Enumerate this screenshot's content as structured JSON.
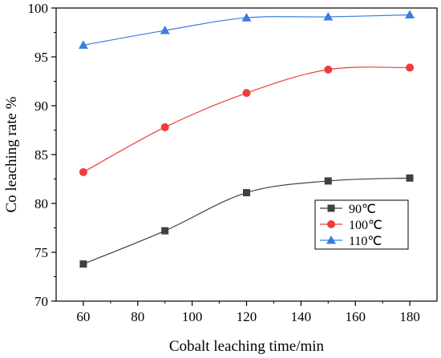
{
  "chart_data": {
    "type": "line",
    "xlabel": "Cobalt leaching time/min",
    "ylabel": "Co leaching rate %",
    "xlim": [
      50,
      190
    ],
    "ylim": [
      70,
      100
    ],
    "xticks": [
      60,
      80,
      100,
      120,
      140,
      160,
      180
    ],
    "yticks": [
      70,
      75,
      80,
      85,
      90,
      95,
      100
    ],
    "grid": false,
    "legend_position": "lower-right",
    "x": [
      60,
      90,
      120,
      150,
      180
    ],
    "series": [
      {
        "name": "90℃",
        "marker": "square",
        "color": "#404040",
        "values": [
          73.8,
          77.2,
          81.1,
          82.3,
          82.6
        ]
      },
      {
        "name": "100℃",
        "marker": "circle",
        "color": "#f03c3c",
        "values": [
          83.2,
          87.8,
          91.3,
          93.7,
          93.9
        ]
      },
      {
        "name": "110℃",
        "marker": "triangle",
        "color": "#3a7dde",
        "values": [
          96.2,
          97.7,
          99.0,
          99.1,
          99.3
        ]
      }
    ]
  }
}
